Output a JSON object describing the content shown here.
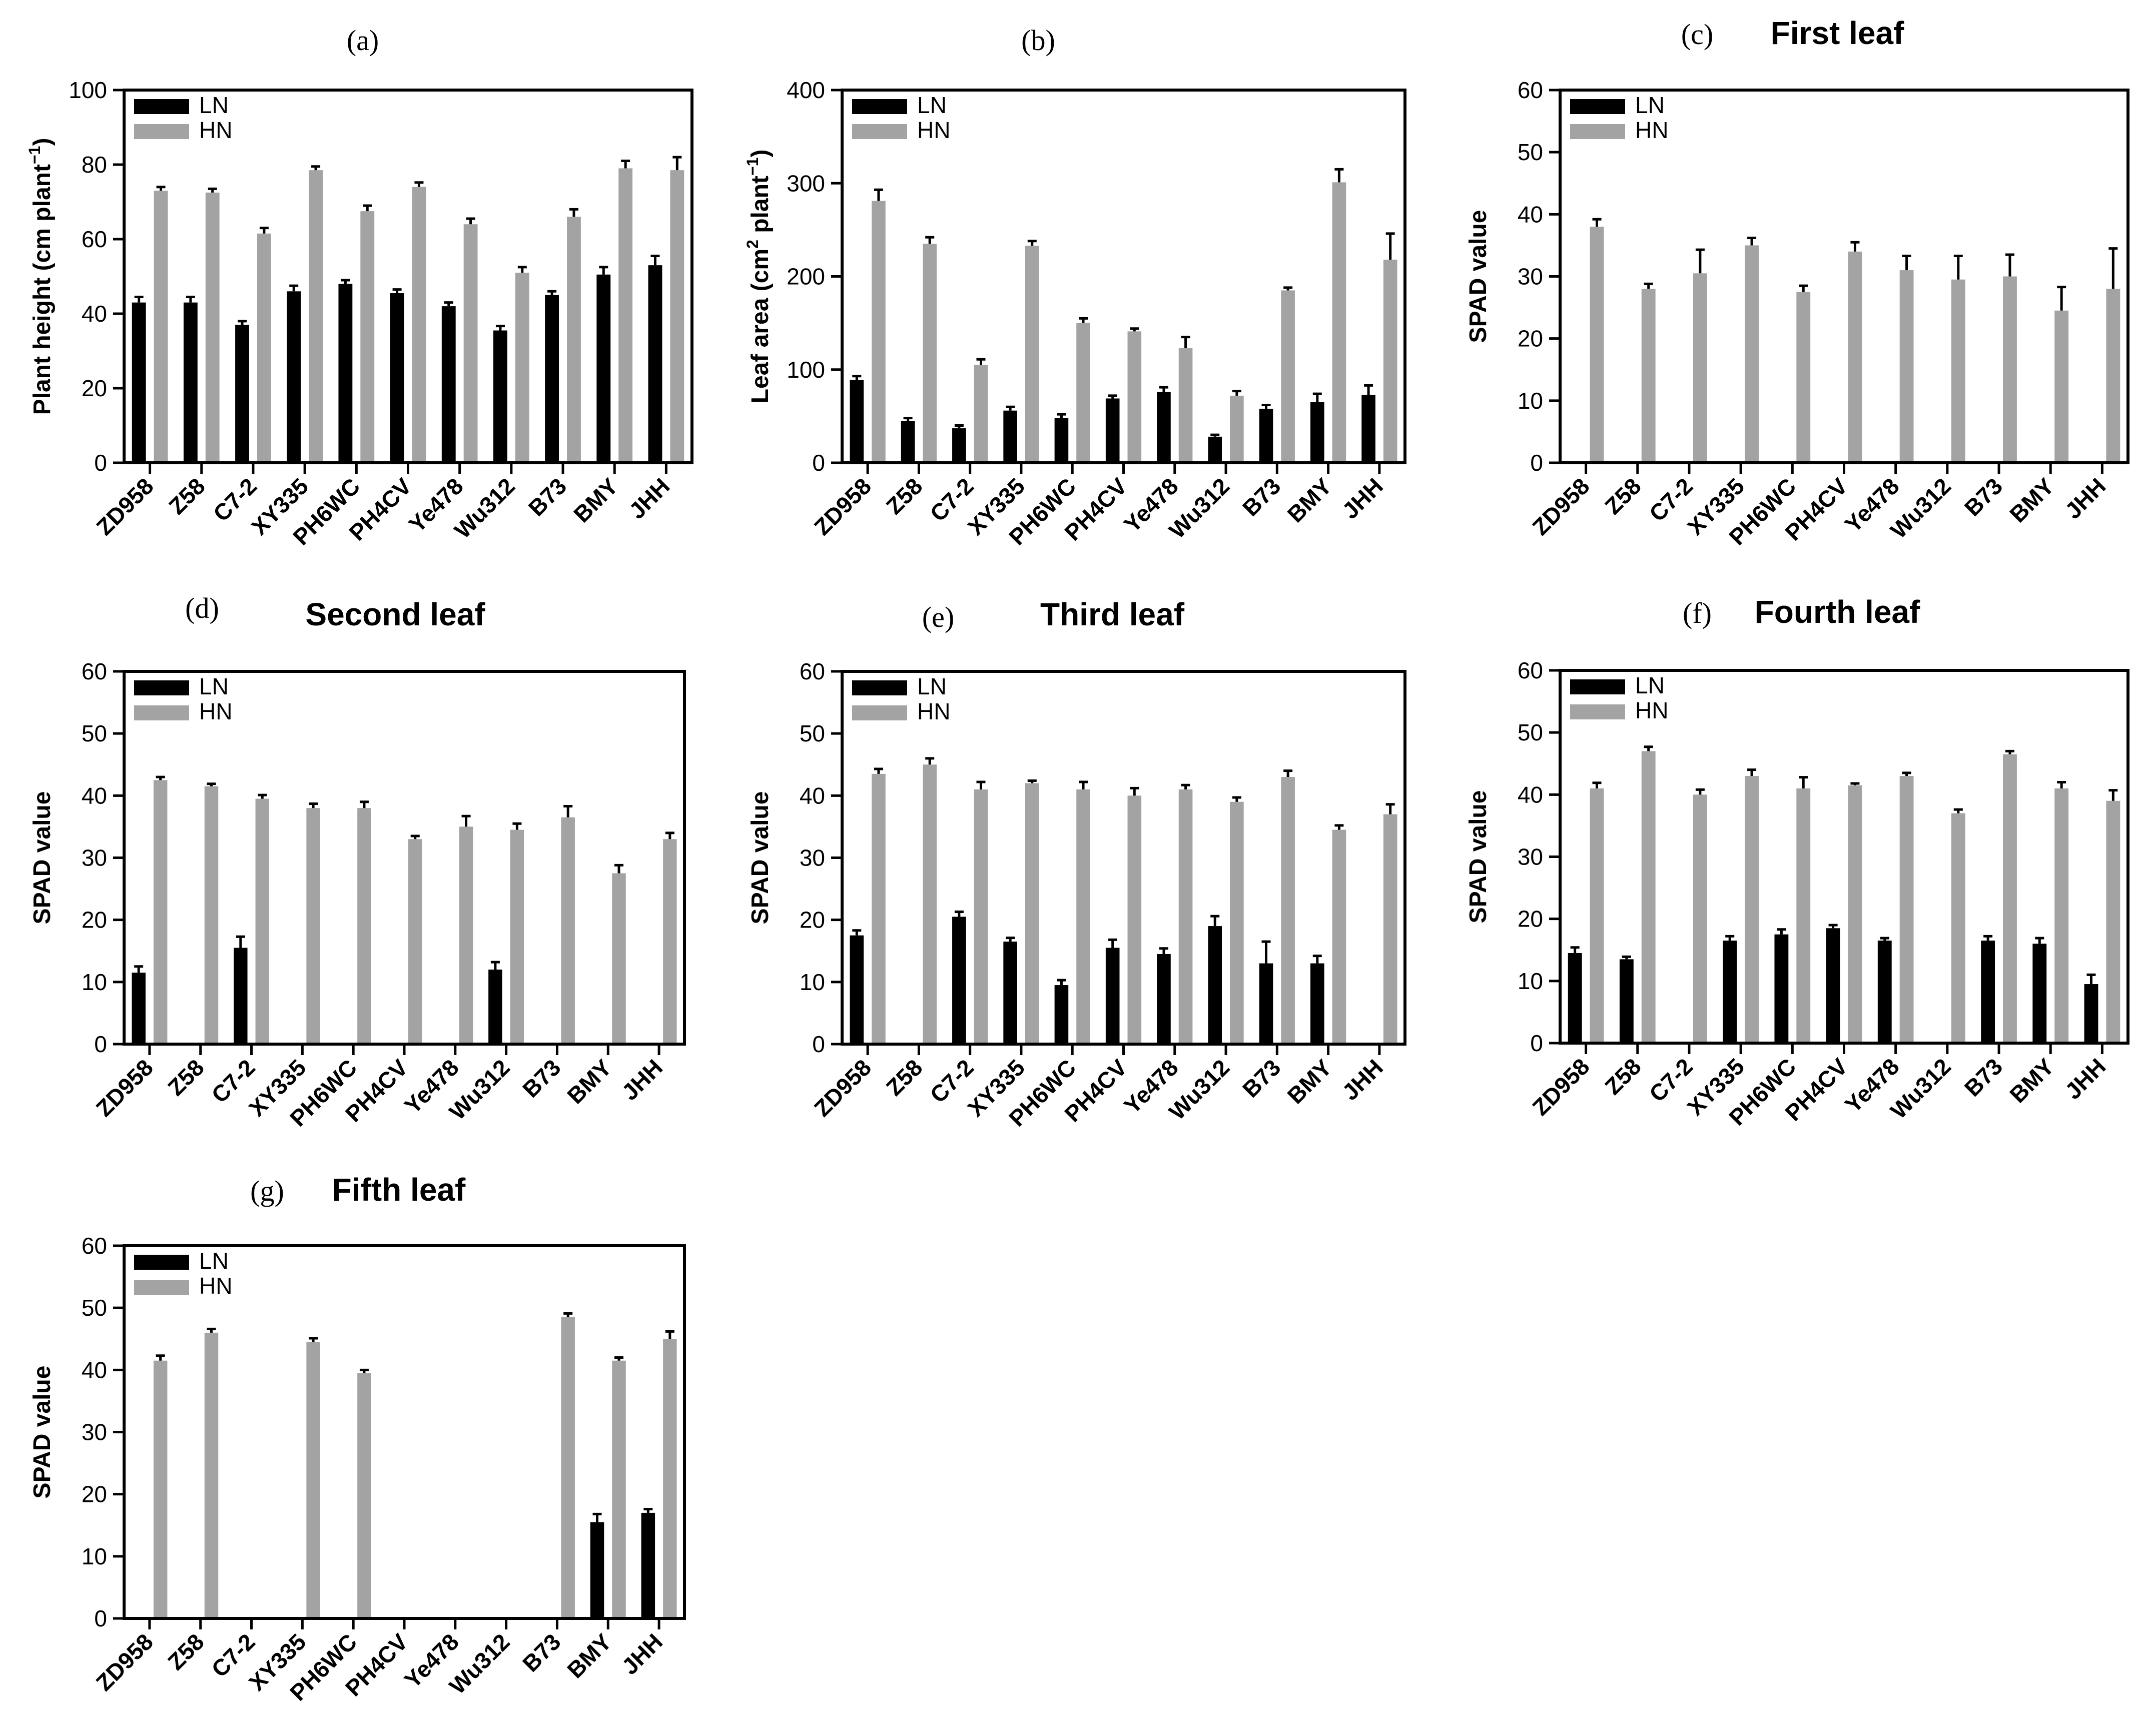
{
  "chart_data": [
    {
      "panel": "(a)",
      "title": "",
      "type": "bar",
      "ylabel": "Plant height (cm plant",
      "ylabel_sup": "−1",
      "ylabel_end": ")",
      "ylim": [
        0,
        100
      ],
      "yticks": [
        0,
        20,
        40,
        60,
        80,
        100
      ],
      "categories": [
        "ZD958",
        "Z58",
        "C7-2",
        "XY335",
        "PH6WC",
        "PH4CV",
        "Ye478",
        "Wu312",
        "B73",
        "BMY",
        "JHH"
      ],
      "series": [
        {
          "name": "LN",
          "color": "#000000",
          "values": [
            43,
            43,
            37,
            46,
            48,
            45.5,
            42,
            35.5,
            45,
            50.5,
            53
          ],
          "errors": [
            1.5,
            1.5,
            1,
            1.5,
            1,
            1,
            1,
            1.2,
            1,
            2,
            2.5
          ]
        },
        {
          "name": "HN",
          "color": "#a3a3a3",
          "values": [
            73,
            72.5,
            61.5,
            78.5,
            67.5,
            74,
            64,
            51,
            66,
            79,
            78.5
          ],
          "errors": [
            1,
            1,
            1.5,
            1,
            1.5,
            1.2,
            1.5,
            1.5,
            2,
            2,
            3.5
          ]
        }
      ]
    },
    {
      "panel": "(b)",
      "title": "",
      "type": "bar",
      "ylabel": "Leaf area (cm",
      "ylabel_sup": "2",
      "ylabel_end": " plant",
      "ylabel_sup2": "−1",
      "ylabel_end2": ")",
      "ylim": [
        0,
        400
      ],
      "yticks": [
        0,
        100,
        200,
        300,
        400
      ],
      "categories": [
        "ZD958",
        "Z58",
        "C7-2",
        "XY335",
        "PH6WC",
        "PH4CV",
        "Ye478",
        "Wu312",
        "B73",
        "BMY",
        "JHH"
      ],
      "series": [
        {
          "name": "LN",
          "color": "#000000",
          "values": [
            89,
            45,
            37,
            56,
            48,
            69,
            76,
            28,
            58,
            65,
            73
          ],
          "errors": [
            4,
            3,
            3,
            4,
            4,
            3,
            5,
            2,
            4,
            9,
            10
          ]
        },
        {
          "name": "HN",
          "color": "#a3a3a3",
          "values": [
            281,
            235,
            105,
            233,
            150,
            141,
            123,
            72,
            185,
            301,
            218
          ],
          "errors": [
            12,
            7,
            6,
            5,
            5,
            3,
            12,
            5,
            3,
            14,
            28
          ]
        }
      ]
    },
    {
      "panel": "(c)",
      "title": "First leaf",
      "type": "bar",
      "ylabel": "SPAD value",
      "ylim": [
        0,
        60
      ],
      "yticks": [
        0,
        10,
        20,
        30,
        40,
        50,
        60
      ],
      "categories": [
        "ZD958",
        "Z58",
        "C7-2",
        "XY335",
        "PH6WC",
        "PH4CV",
        "Ye478",
        "Wu312",
        "B73",
        "BMY",
        "JHH"
      ],
      "series": [
        {
          "name": "LN",
          "color": "#000000",
          "values": [
            null,
            null,
            null,
            null,
            null,
            null,
            null,
            null,
            null,
            null,
            null
          ],
          "errors": [
            null,
            null,
            null,
            null,
            null,
            null,
            null,
            null,
            null,
            null,
            null
          ]
        },
        {
          "name": "HN",
          "color": "#a3a3a3",
          "values": [
            38,
            28,
            30.5,
            35,
            27.5,
            34,
            31,
            29.5,
            30,
            24.5,
            28
          ],
          "errors": [
            1.2,
            0.8,
            3.8,
            1.2,
            1,
            1.5,
            2.3,
            3.8,
            3.5,
            3.8,
            6.5
          ]
        }
      ]
    },
    {
      "panel": "(d)",
      "title": "Second leaf",
      "type": "bar",
      "ylabel": "SPAD value",
      "ylim": [
        0,
        60
      ],
      "yticks": [
        0,
        10,
        20,
        30,
        40,
        50,
        60
      ],
      "categories": [
        "ZD958",
        "Z58",
        "C7-2",
        "XY335",
        "PH6WC",
        "PH4CV",
        "Ye478",
        "Wu312",
        "B73",
        "BMY",
        "JHH"
      ],
      "series": [
        {
          "name": "LN",
          "color": "#000000",
          "values": [
            11.5,
            null,
            15.5,
            null,
            null,
            null,
            null,
            12,
            null,
            null,
            null
          ],
          "errors": [
            1,
            null,
            1.8,
            null,
            null,
            null,
            null,
            1.2,
            null,
            null,
            null
          ]
        },
        {
          "name": "HN",
          "color": "#a3a3a3",
          "values": [
            42.5,
            41.5,
            39.5,
            38,
            38,
            33,
            35,
            34.5,
            36.5,
            27.5,
            33
          ],
          "errors": [
            0.5,
            0.4,
            0.6,
            0.7,
            1,
            0.5,
            1.7,
            1,
            1.8,
            1.3,
            1
          ]
        }
      ]
    },
    {
      "panel": "(e)",
      "title": "Third leaf",
      "type": "bar",
      "ylabel": "SPAD value",
      "ylim": [
        0,
        60
      ],
      "yticks": [
        0,
        10,
        20,
        30,
        40,
        50,
        60
      ],
      "categories": [
        "ZD958",
        "Z58",
        "C7-2",
        "XY335",
        "PH6WC",
        "PH4CV",
        "Ye478",
        "Wu312",
        "B73",
        "BMY",
        "JHH"
      ],
      "series": [
        {
          "name": "LN",
          "color": "#000000",
          "values": [
            17.5,
            null,
            20.5,
            16.5,
            9.5,
            15.5,
            14.5,
            19,
            13,
            13,
            null
          ],
          "errors": [
            0.8,
            null,
            0.8,
            0.6,
            0.8,
            1.3,
            0.9,
            1.6,
            3.5,
            1.2,
            null
          ]
        },
        {
          "name": "HN",
          "color": "#a3a3a3",
          "values": [
            43.5,
            45,
            41,
            42,
            41,
            40,
            41,
            39,
            43,
            34.5,
            37
          ],
          "errors": [
            0.8,
            1,
            1.2,
            0.4,
            1.2,
            1.2,
            0.7,
            0.7,
            1,
            0.7,
            1.6
          ]
        }
      ]
    },
    {
      "panel": "(f)",
      "title": "Fourth leaf",
      "type": "bar",
      "ylabel": "SPAD value",
      "ylim": [
        0,
        60
      ],
      "yticks": [
        0,
        10,
        20,
        30,
        40,
        50,
        60
      ],
      "categories": [
        "ZD958",
        "Z58",
        "C7-2",
        "XY335",
        "PH6WC",
        "PH4CV",
        "Ye478",
        "Wu312",
        "B73",
        "BMY",
        "JHH"
      ],
      "series": [
        {
          "name": "LN",
          "color": "#000000",
          "values": [
            14.5,
            13.5,
            null,
            16.5,
            17.5,
            18.5,
            16.5,
            null,
            16.5,
            16,
            9.5
          ],
          "errors": [
            0.9,
            0.4,
            null,
            0.7,
            0.8,
            0.5,
            0.4,
            null,
            0.7,
            0.9,
            1.5
          ]
        },
        {
          "name": "HN",
          "color": "#a3a3a3",
          "values": [
            41,
            47,
            40,
            43,
            41,
            41.5,
            43,
            37,
            46.5,
            41,
            39
          ],
          "errors": [
            0.9,
            0.7,
            0.8,
            1,
            1.8,
            0.3,
            0.5,
            0.6,
            0.5,
            1,
            1.7
          ]
        }
      ]
    },
    {
      "panel": "(g)",
      "title": "Fifth leaf",
      "type": "bar",
      "ylabel": "SPAD value",
      "ylim": [
        0,
        60
      ],
      "yticks": [
        0,
        10,
        20,
        30,
        40,
        50,
        60
      ],
      "categories": [
        "ZD958",
        "Z58",
        "C7-2",
        "XY335",
        "PH6WC",
        "PH4CV",
        "Ye478",
        "Wu312",
        "B73",
        "BMY",
        "JHH"
      ],
      "series": [
        {
          "name": "LN",
          "color": "#000000",
          "values": [
            null,
            null,
            null,
            null,
            null,
            null,
            null,
            null,
            null,
            15.5,
            17
          ],
          "errors": [
            null,
            null,
            null,
            null,
            null,
            null,
            null,
            null,
            null,
            1.3,
            0.6
          ]
        },
        {
          "name": "HN",
          "color": "#a3a3a3",
          "values": [
            41.5,
            46,
            null,
            44.5,
            39.5,
            null,
            null,
            null,
            48.5,
            41.5,
            45
          ],
          "errors": [
            0.8,
            0.6,
            null,
            0.6,
            0.5,
            null,
            null,
            null,
            0.6,
            0.5,
            1.2
          ]
        }
      ]
    }
  ]
}
